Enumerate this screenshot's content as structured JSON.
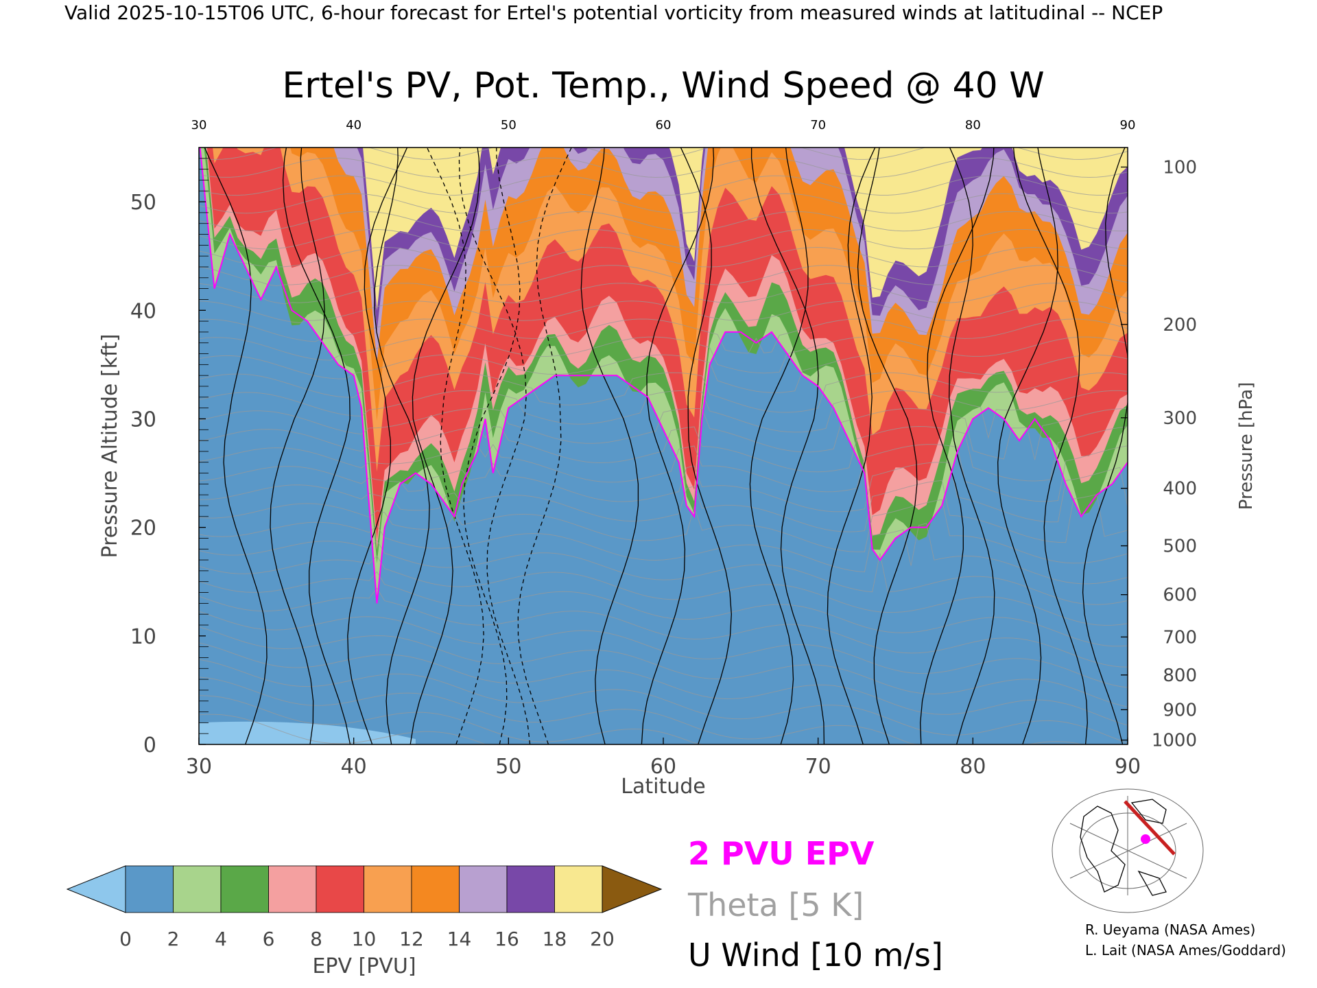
{
  "header": {
    "top_line": "Valid 2025-10-15T06 UTC, 6-hour forecast for Ertel's potential vorticity from measured winds at latitudinal -- NCEP",
    "title": "Ertel's PV, Pot. Temp., Wind Speed @ 40 W"
  },
  "chart_data": {
    "type": "heatmap",
    "title": "Ertel's PV, Pot. Temp., Wind Speed @ 40 W",
    "xlabel": "Latitude",
    "ylabel": "Pressure Altitude [kft]",
    "y2label": "Pressure [hPa]",
    "xlim": [
      30,
      90
    ],
    "ylim": [
      0,
      55
    ],
    "x_ticks": [
      30,
      40,
      50,
      60,
      70,
      80,
      90
    ],
    "x_ticks_top": [
      30,
      40,
      50,
      60,
      70,
      80,
      90
    ],
    "y_ticks": [
      0,
      10,
      20,
      30,
      40,
      50
    ],
    "pressure_ticks": [
      {
        "hpa": "100",
        "kft": 53.2
      },
      {
        "hpa": "200",
        "kft": 38.7
      },
      {
        "hpa": "300",
        "kft": 30.1
      },
      {
        "hpa": "400",
        "kft": 23.6
      },
      {
        "hpa": "500",
        "kft": 18.3
      },
      {
        "hpa": "600",
        "kft": 13.8
      },
      {
        "hpa": "700",
        "kft": 9.9
      },
      {
        "hpa": "800",
        "kft": 6.4
      },
      {
        "hpa": "900",
        "kft": 3.2
      },
      {
        "hpa": "1000",
        "kft": 0.4
      }
    ],
    "tropopause_2pvu_kft": [
      [
        30,
        56
      ],
      [
        31,
        42
      ],
      [
        32,
        47
      ],
      [
        33,
        44
      ],
      [
        34,
        41
      ],
      [
        35,
        44
      ],
      [
        36,
        40
      ],
      [
        37,
        39
      ],
      [
        38,
        37
      ],
      [
        39,
        35
      ],
      [
        40,
        34
      ],
      [
        40.5,
        31
      ],
      [
        41,
        22
      ],
      [
        41.5,
        13
      ],
      [
        42,
        20
      ],
      [
        43,
        24
      ],
      [
        44,
        25
      ],
      [
        45,
        24
      ],
      [
        46,
        22
      ],
      [
        46.5,
        21
      ],
      [
        47,
        24
      ],
      [
        48,
        27
      ],
      [
        48.5,
        30
      ],
      [
        49,
        25
      ],
      [
        50,
        31
      ],
      [
        51,
        32
      ],
      [
        52,
        33
      ],
      [
        53,
        34
      ],
      [
        54,
        34
      ],
      [
        55,
        34
      ],
      [
        56,
        34
      ],
      [
        57,
        34
      ],
      [
        58,
        33
      ],
      [
        59,
        32
      ],
      [
        60,
        29
      ],
      [
        61,
        26
      ],
      [
        61.5,
        22
      ],
      [
        62,
        21
      ],
      [
        62.5,
        30
      ],
      [
        63,
        35
      ],
      [
        64,
        38
      ],
      [
        65,
        38
      ],
      [
        66,
        37
      ],
      [
        67,
        38
      ],
      [
        68,
        36
      ],
      [
        69,
        34
      ],
      [
        70,
        33
      ],
      [
        71,
        31
      ],
      [
        72,
        28
      ],
      [
        73,
        25
      ],
      [
        73.5,
        18
      ],
      [
        74,
        17
      ],
      [
        75,
        19
      ],
      [
        76,
        20
      ],
      [
        77,
        20
      ],
      [
        78,
        22
      ],
      [
        79,
        27
      ],
      [
        80,
        30
      ],
      [
        81,
        31
      ],
      [
        82,
        30
      ],
      [
        83,
        28
      ],
      [
        84,
        30
      ],
      [
        85,
        28
      ],
      [
        86,
        24
      ],
      [
        87,
        21
      ],
      [
        88,
        23
      ],
      [
        89,
        24
      ],
      [
        90,
        26
      ]
    ],
    "colorbar": {
      "label": "EPV [PVU]",
      "ticks": [
        0,
        2,
        4,
        6,
        8,
        10,
        12,
        14,
        16,
        18,
        20
      ],
      "colors": [
        "#8ec7ec",
        "#5a98c8",
        "#a8d48c",
        "#5aa848",
        "#f4a0a0",
        "#e84848",
        "#f8a050",
        "#f48820",
        "#b8a0d0",
        "#7848a8",
        "#f8e890",
        "#8a5a10"
      ]
    },
    "legend": {
      "pvu": "2 PVU EPV",
      "theta": "Theta [5 K]",
      "u_wind": "U Wind [10 m/s]",
      "pvu_color": "#ff00ff",
      "theta_color": "#a0a0a0",
      "wind_color": "#000000"
    }
  },
  "credits": {
    "line1": "R. Ueyama (NASA Ames)",
    "line2": "L. Lait (NASA Ames/Goddard)"
  }
}
